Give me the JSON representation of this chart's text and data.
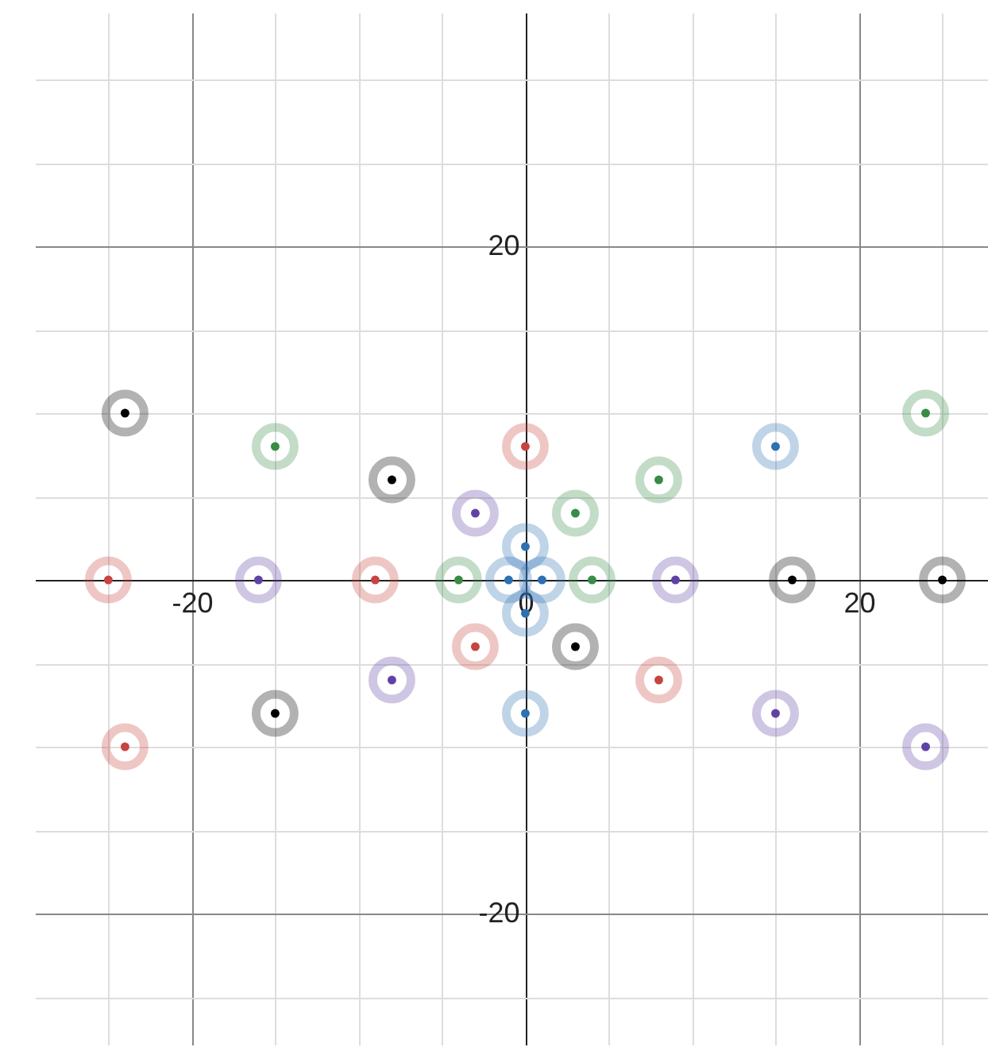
{
  "chart_data": {
    "type": "scatter",
    "xlim": [
      -29.4,
      28.5
    ],
    "ylim": [
      -27.9,
      34
    ],
    "xticks": [
      {
        "value": -25,
        "label": null
      },
      -20,
      {
        "value": -15,
        "label": null
      },
      {
        "value": -10,
        "label": null
      },
      {
        "value": -5,
        "label": null
      },
      0,
      {
        "value": 5,
        "label": null
      },
      {
        "value": 10,
        "label": null
      },
      {
        "value": 15,
        "label": null
      },
      20,
      {
        "value": 25,
        "label": null
      }
    ],
    "yticks": [
      {
        "value": -25,
        "label": null
      },
      -20,
      {
        "value": -15,
        "label": null
      },
      {
        "value": -10,
        "label": null
      },
      {
        "value": -5,
        "label": null
      },
      {
        "value": 0,
        "label": null
      },
      {
        "value": 5,
        "label": null
      },
      {
        "value": 10,
        "label": null
      },
      {
        "value": 15,
        "label": null
      },
      20,
      {
        "value": 25,
        "label": null
      },
      {
        "value": 30,
        "label": null
      }
    ],
    "grid": true,
    "marker": "circle",
    "series": [
      {
        "color": "#000000",
        "x": [
          -24,
          -8,
          -15,
          3,
          16,
          25
        ],
        "values": [
          10,
          6,
          -8,
          -4,
          0,
          0
        ]
      },
      {
        "color": "#c74440",
        "x": [
          0,
          -25,
          -9,
          -3,
          8,
          -24
        ],
        "values": [
          8,
          0,
          0,
          -4,
          -6,
          -10
        ]
      },
      {
        "color": "#388c46",
        "x": [
          24,
          -15,
          8,
          3,
          -4,
          4
        ],
        "values": [
          10,
          8,
          6,
          4,
          0,
          0
        ]
      },
      {
        "color": "#6042a6",
        "x": [
          -3,
          -16,
          9,
          -8,
          15,
          24
        ],
        "values": [
          4,
          0,
          0,
          -6,
          -8,
          -10
        ]
      },
      {
        "color": "#2d70b3",
        "x": [
          15,
          0,
          0,
          -1,
          1,
          0
        ],
        "values": [
          8,
          2,
          -2,
          0,
          0,
          -8
        ]
      }
    ]
  }
}
